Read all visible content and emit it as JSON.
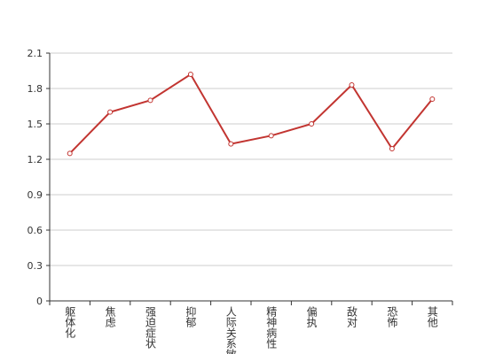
{
  "chart_data": {
    "type": "line",
    "categories": [
      "躯体化",
      "焦虑",
      "强迫症状",
      "抑郁",
      "人际关系敏感",
      "精神病性",
      "偏执",
      "敌对",
      "恐怖",
      "其他"
    ],
    "series": [
      {
        "name": "",
        "color": "#c23531",
        "values": [
          1.25,
          1.6,
          1.7,
          1.92,
          1.33,
          1.4,
          1.5,
          1.83,
          1.29,
          1.71
        ]
      }
    ],
    "ylim": [
      0,
      2.1
    ],
    "yticks": [
      0,
      0.3,
      0.6,
      0.9,
      1.2,
      1.5,
      1.8,
      2.1
    ],
    "grid": true
  }
}
